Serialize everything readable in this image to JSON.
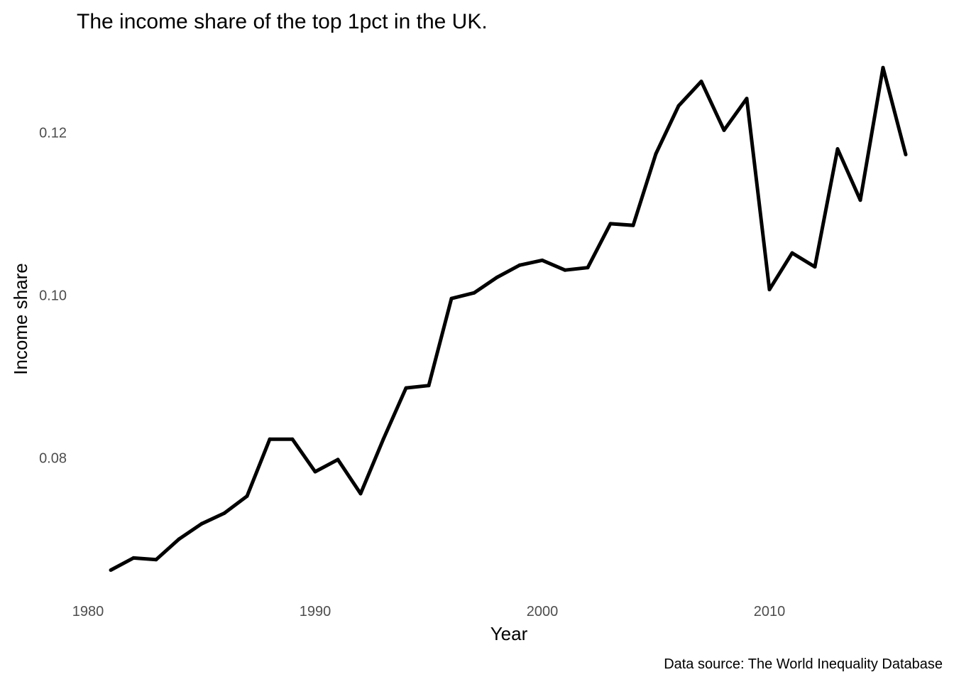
{
  "chart_data": {
    "type": "line",
    "title": "The income share of the top 1pct in the UK.",
    "xlabel": "Year",
    "ylabel": "Income share",
    "caption": "Data source: The World Inequality Database",
    "xlim": [
      1979.5,
      2016.5
    ],
    "ylim": [
      0.0645,
      0.1295
    ],
    "x_ticks": [
      1980,
      1990,
      2000,
      2010
    ],
    "x_tick_labels": [
      "1980",
      "1990",
      "2000",
      "2010"
    ],
    "y_ticks": [
      0.08,
      0.1,
      0.12
    ],
    "y_tick_labels": [
      "0.08",
      "0.10",
      "0.12"
    ],
    "grid": false,
    "legend": "none",
    "line_color": "#000000",
    "series": [
      {
        "x": [
          1981,
          1982,
          1983,
          1984,
          1985,
          1986,
          1987,
          1988,
          1989,
          1990,
          1991,
          1992,
          1993,
          1994,
          1995,
          1996,
          1997,
          1998,
          1999,
          2000,
          2001,
          2002,
          2003,
          2004,
          2005,
          2006,
          2007,
          2008,
          2009,
          2010,
          2011,
          2012,
          2013,
          2014,
          2015,
          2016
        ],
        "values": [
          0.0662,
          0.0677,
          0.0675,
          0.07,
          0.0719,
          0.0732,
          0.0753,
          0.0823,
          0.0823,
          0.0783,
          0.0798,
          0.0756,
          0.0823,
          0.0886,
          0.0889,
          0.0996,
          0.1003,
          0.1022,
          0.1037,
          0.1043,
          0.1031,
          0.1034,
          0.1088,
          0.1086,
          0.1174,
          0.1233,
          0.1263,
          0.1203,
          0.1242,
          0.1007,
          0.1052,
          0.1035,
          0.118,
          0.1117,
          0.128,
          0.1173
        ]
      }
    ]
  }
}
